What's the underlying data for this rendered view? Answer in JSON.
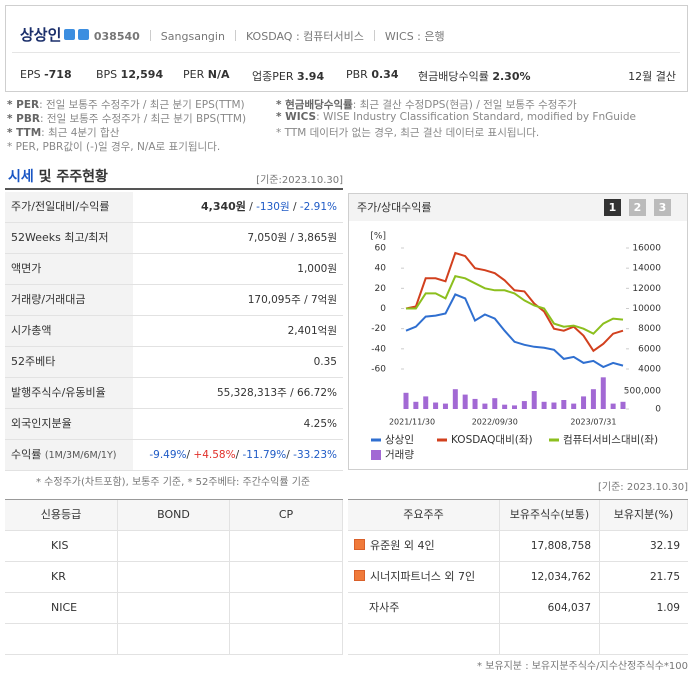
{
  "header": {
    "name": "상상인",
    "code": "038540",
    "english": "Sangsangin",
    "market": "KOSDAQ : 컴퓨터서비스",
    "wics": "WICS : 은행",
    "fiscal": "12월 결산",
    "metrics": [
      {
        "label": "EPS",
        "value": "-718"
      },
      {
        "label": "BPS",
        "value": "12,594"
      },
      {
        "label": "PER",
        "value": "N/A"
      },
      {
        "label": "업종PER",
        "value": "3.94"
      },
      {
        "label": "PBR",
        "value": "0.34"
      },
      {
        "label": "현금배당수익률",
        "value": "2.30%"
      }
    ]
  },
  "notes": {
    "left": [
      {
        "term": "* PER",
        "text": ": 전일 보통주 수정주가 / 최근 분기 EPS(TTM)"
      },
      {
        "term": "* PBR",
        "text": ": 전일 보통주 수정주가 / 최근 분기 BPS(TTM)"
      },
      {
        "term": "* TTM",
        "text": ": 최근 4분기 합산"
      },
      {
        "text": "* PER, PBR값이 (-)일 경우, N/A로 표기됩니다."
      }
    ],
    "right": [
      {
        "term": "* 현금배당수익률",
        "text": ": 최근 결산 수정DPS(현금) / 전일 보통주 수정주가"
      },
      {
        "term": "* WICS",
        "text": ": WISE Industry Classification Standard, modified by FnGuide"
      },
      {
        "text": "* TTM 데이터가 없는 경우, 최근 결산 데이터로 표시됩니다."
      }
    ]
  },
  "section": {
    "highlight": "시세",
    "rest": "및 주주현황",
    "date": "[기준:2023.10.30]"
  },
  "price_table": {
    "rows": [
      {
        "label": "주가/전일대비/수익률",
        "parts": [
          {
            "text": "4,340원",
            "bold": true
          },
          {
            "text": " / "
          },
          {
            "text": "-130원",
            "color": "#1f5bc6"
          },
          {
            "text": " / "
          },
          {
            "text": "-2.91%",
            "color": "#1f5bc6"
          }
        ]
      },
      {
        "label": "52Weeks 최고/최저",
        "parts": [
          {
            "text": "7,050원 / 3,865원"
          }
        ]
      },
      {
        "label": "액면가",
        "parts": [
          {
            "text": "1,000원"
          }
        ]
      },
      {
        "label": "거래량/거래대금",
        "parts": [
          {
            "text": "170,095주 / 7억원"
          }
        ]
      },
      {
        "label": "시가총액",
        "parts": [
          {
            "text": "2,401억원"
          }
        ]
      },
      {
        "label": "52주베타",
        "parts": [
          {
            "text": "0.35"
          }
        ]
      },
      {
        "label": "발행주식수/유동비율",
        "parts": [
          {
            "text": "55,328,313주 / 66.72%"
          }
        ]
      },
      {
        "label": "외국인지분율",
        "parts": [
          {
            "text": "4.25%"
          }
        ]
      },
      {
        "label": "수익률",
        "sub": "(1M/3M/6M/1Y)",
        "parts": [
          {
            "text": "-9.49%",
            "color": "#1f5bc6"
          },
          {
            "text": "/ "
          },
          {
            "text": "+4.58%",
            "color": "#e0302a"
          },
          {
            "text": "/ "
          },
          {
            "text": "-11.79%",
            "color": "#1f5bc6"
          },
          {
            "text": "/ "
          },
          {
            "text": "-33.23%",
            "color": "#1f5bc6"
          }
        ]
      }
    ],
    "footnote": "* 수정주가(차트포함), 보통주 기준, * 52주베타: 주간수익률 기준"
  },
  "chart_data": {
    "type": "line",
    "title": "주가/상대수익률",
    "pages": [
      "1",
      "2",
      "3"
    ],
    "ylabel": "[%]",
    "categories": [
      "2021/11/30",
      null,
      null,
      null,
      null,
      null,
      null,
      null,
      null,
      "2022/09/30",
      null,
      null,
      null,
      null,
      null,
      null,
      null,
      null,
      null,
      "2023/07/31",
      null,
      null,
      null
    ],
    "ylim": [
      -60,
      60
    ],
    "yticks": [
      -60,
      -40,
      -20,
      0,
      20,
      40,
      60
    ],
    "y2lim": [
      4000,
      16000
    ],
    "y2ticks": [
      4000,
      6000,
      8000,
      10000,
      12000,
      14000,
      16000
    ],
    "y3lim": [
      0,
      1000000
    ],
    "y3ticks": [
      0,
      {
        "value": 500000,
        "label": "500,000"
      }
    ],
    "series": [
      {
        "name": "상상인",
        "color": "#2f6fd0",
        "axis": "y2",
        "values": [
          7800,
          8200,
          9200,
          9300,
          9500,
          11400,
          11000,
          8800,
          9400,
          9000,
          7800,
          6700,
          6400,
          6200,
          6100,
          5900,
          5000,
          5200,
          4600,
          4800,
          4200,
          4600,
          4340
        ]
      },
      {
        "name": "KOSDAQ대비(좌)",
        "color": "#d2401e",
        "values": [
          0,
          2,
          30,
          30,
          27,
          55,
          52,
          40,
          38,
          35,
          28,
          18,
          17,
          5,
          -3,
          -20,
          -22,
          -18,
          -27,
          -42,
          -35,
          -25,
          -22
        ]
      },
      {
        "name": "컴퓨터서비스대비(좌)",
        "color": "#8cbf1e",
        "values": [
          0,
          0,
          15,
          15,
          10,
          32,
          30,
          25,
          20,
          18,
          18,
          15,
          8,
          3,
          0,
          -15,
          -18,
          -17,
          -20,
          -25,
          -15,
          -10,
          -11
        ]
      },
      {
        "name": "거래량",
        "color": "#a269d4",
        "type": "bar",
        "axis": "y3",
        "values": [
          450000,
          200000,
          350000,
          180000,
          150000,
          550000,
          400000,
          280000,
          150000,
          300000,
          120000,
          100000,
          220000,
          500000,
          200000,
          180000,
          250000,
          150000,
          350000,
          550000,
          880000,
          150000,
          200000
        ]
      }
    ]
  },
  "credit": {
    "headers": [
      "신용등급",
      "BOND",
      "CP"
    ],
    "rows": [
      "KIS",
      "KR",
      "NICE"
    ]
  },
  "holders": {
    "date": "[기준: 2023.10.30]",
    "headers": [
      "주요주주",
      "보유주식수(보통)",
      "보유지분(%)"
    ],
    "rows": [
      {
        "name": "유준원 외 4인",
        "shares": "17,808,758",
        "pct": "32.19",
        "icon": true
      },
      {
        "name": "시너지파트너스 외 7인",
        "shares": "12,034,762",
        "pct": "21.75",
        "icon": true
      },
      {
        "name": "자사주",
        "shares": "604,037",
        "pct": "1.09"
      }
    ],
    "note": "* 보유지분 : 보유지분주식수/지수산정주식수*100"
  }
}
